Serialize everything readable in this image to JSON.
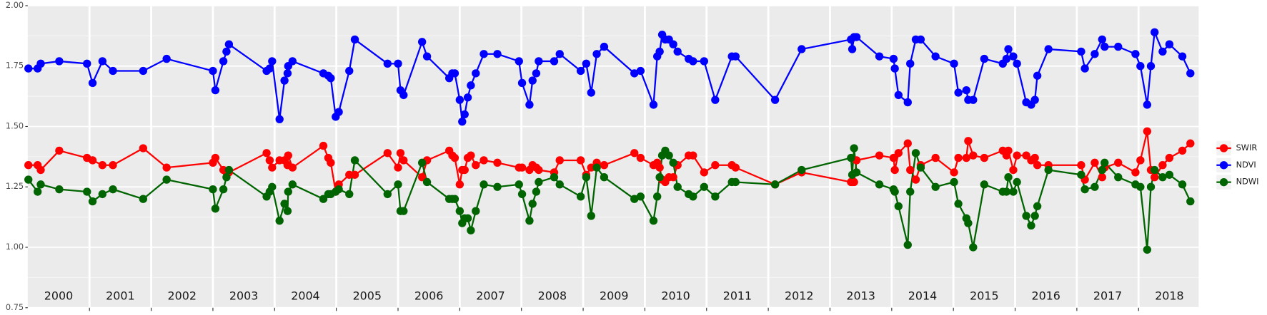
{
  "chart_data": {
    "type": "line",
    "x": [
      2000.01,
      2000.16,
      2000.21,
      2000.51,
      2000.96,
      2001.05,
      2001.21,
      2001.38,
      2001.87,
      2002.25,
      2003.0,
      2003.04,
      2003.17,
      2003.22,
      2003.26,
      2003.87,
      2003.92,
      2003.96,
      2004.08,
      2004.16,
      2004.21,
      2004.22,
      2004.29,
      2004.79,
      2004.87,
      2004.91,
      2004.99,
      2005.04,
      2005.21,
      2005.3,
      2005.83,
      2006.0,
      2006.04,
      2006.09,
      2006.39,
      2006.47,
      2006.83,
      2006.88,
      2006.92,
      2007.0,
      2007.04,
      2007.08,
      2007.13,
      2007.18,
      2007.26,
      2007.39,
      2007.61,
      2007.96,
      2008.01,
      2008.13,
      2008.18,
      2008.24,
      2008.28,
      2008.53,
      2008.62,
      2008.96,
      2009.05,
      2009.13,
      2009.22,
      2009.34,
      2009.83,
      2009.93,
      2010.14,
      2010.2,
      2010.24,
      2010.28,
      2010.33,
      2010.39,
      2010.46,
      2010.53,
      2010.71,
      2010.78,
      2010.96,
      2011.14,
      2011.41,
      2011.47,
      2012.11,
      2012.54,
      2013.34,
      2013.36,
      2013.39,
      2013.43,
      2013.8,
      2014.03,
      2014.05,
      2014.11,
      2014.26,
      2014.3,
      2014.39,
      2014.47,
      2014.71,
      2015.01,
      2015.08,
      2015.21,
      2015.24,
      2015.32,
      2015.5,
      2015.8,
      2015.86,
      2015.89,
      2015.97,
      2016.03,
      2016.18,
      2016.26,
      2016.32,
      2016.36,
      2016.54,
      2017.07,
      2017.13,
      2017.29,
      2017.41,
      2017.45,
      2017.67,
      2017.95,
      2018.03,
      2018.14,
      2018.2,
      2018.26,
      2018.39,
      2018.5,
      2018.71,
      2018.84
    ],
    "series": [
      {
        "name": "SWIR",
        "color": "#ff0000",
        "values": [
          1.34,
          1.34,
          1.32,
          1.4,
          1.37,
          1.36,
          1.34,
          1.34,
          1.41,
          1.33,
          1.35,
          1.37,
          1.32,
          1.31,
          1.31,
          1.39,
          1.36,
          1.33,
          1.36,
          1.36,
          1.34,
          1.38,
          1.33,
          1.42,
          1.37,
          1.35,
          1.23,
          1.26,
          1.3,
          1.3,
          1.39,
          1.33,
          1.39,
          1.36,
          1.29,
          1.36,
          1.4,
          1.38,
          1.37,
          1.26,
          1.32,
          1.32,
          1.37,
          1.38,
          1.34,
          1.36,
          1.35,
          1.33,
          1.33,
          1.32,
          1.34,
          1.33,
          1.32,
          1.31,
          1.36,
          1.36,
          1.3,
          1.33,
          1.35,
          1.34,
          1.39,
          1.37,
          1.34,
          1.35,
          1.33,
          1.28,
          1.27,
          1.29,
          1.29,
          1.34,
          1.38,
          1.38,
          1.31,
          1.34,
          1.34,
          1.33,
          1.26,
          1.31,
          1.27,
          1.27,
          1.27,
          1.36,
          1.38,
          1.37,
          1.32,
          1.39,
          1.43,
          1.32,
          1.28,
          1.34,
          1.37,
          1.31,
          1.37,
          1.37,
          1.44,
          1.38,
          1.37,
          1.4,
          1.38,
          1.4,
          1.32,
          1.38,
          1.38,
          1.36,
          1.37,
          1.34,
          1.34,
          1.34,
          1.28,
          1.35,
          1.29,
          1.33,
          1.35,
          1.31,
          1.36,
          1.48,
          1.32,
          1.29,
          1.34,
          1.37,
          1.4,
          1.43
        ]
      },
      {
        "name": "NDVI",
        "color": "#0000ff",
        "values": [
          1.74,
          1.74,
          1.76,
          1.77,
          1.76,
          1.68,
          1.77,
          1.73,
          1.73,
          1.78,
          1.73,
          1.65,
          1.77,
          1.81,
          1.84,
          1.73,
          1.74,
          1.77,
          1.53,
          1.69,
          1.72,
          1.75,
          1.77,
          1.72,
          1.71,
          1.7,
          1.54,
          1.56,
          1.73,
          1.86,
          1.76,
          1.76,
          1.65,
          1.63,
          1.85,
          1.79,
          1.7,
          1.72,
          1.72,
          1.61,
          1.52,
          1.55,
          1.62,
          1.67,
          1.72,
          1.8,
          1.8,
          1.77,
          1.68,
          1.59,
          1.69,
          1.72,
          1.77,
          1.77,
          1.8,
          1.73,
          1.76,
          1.64,
          1.8,
          1.83,
          1.72,
          1.73,
          1.59,
          1.79,
          1.81,
          1.88,
          1.86,
          1.86,
          1.84,
          1.81,
          1.78,
          1.77,
          1.77,
          1.61,
          1.79,
          1.79,
          1.61,
          1.82,
          1.86,
          1.82,
          1.87,
          1.87,
          1.79,
          1.78,
          1.74,
          1.63,
          1.6,
          1.76,
          1.86,
          1.86,
          1.79,
          1.76,
          1.64,
          1.65,
          1.61,
          1.61,
          1.78,
          1.76,
          1.78,
          1.82,
          1.79,
          1.76,
          1.6,
          1.59,
          1.61,
          1.71,
          1.82,
          1.81,
          1.74,
          1.8,
          1.86,
          1.83,
          1.83,
          1.8,
          1.75,
          1.59,
          1.75,
          1.89,
          1.81,
          1.84,
          1.79,
          1.72
        ]
      },
      {
        "name": "NDWI",
        "color": "#006400",
        "values": [
          1.28,
          1.23,
          1.26,
          1.24,
          1.23,
          1.19,
          1.22,
          1.24,
          1.2,
          1.28,
          1.24,
          1.16,
          1.24,
          1.29,
          1.32,
          1.21,
          1.23,
          1.25,
          1.11,
          1.18,
          1.15,
          1.23,
          1.26,
          1.2,
          1.22,
          1.22,
          1.23,
          1.24,
          1.22,
          1.36,
          1.22,
          1.26,
          1.15,
          1.15,
          1.35,
          1.27,
          1.2,
          1.2,
          1.2,
          1.15,
          1.1,
          1.12,
          1.12,
          1.07,
          1.15,
          1.26,
          1.25,
          1.26,
          1.22,
          1.11,
          1.18,
          1.23,
          1.27,
          1.29,
          1.26,
          1.21,
          1.29,
          1.13,
          1.33,
          1.29,
          1.2,
          1.21,
          1.11,
          1.21,
          1.29,
          1.38,
          1.4,
          1.38,
          1.35,
          1.25,
          1.22,
          1.21,
          1.25,
          1.21,
          1.27,
          1.27,
          1.26,
          1.32,
          1.37,
          1.3,
          1.41,
          1.31,
          1.26,
          1.24,
          1.23,
          1.17,
          1.01,
          1.23,
          1.39,
          1.33,
          1.25,
          1.27,
          1.18,
          1.12,
          1.1,
          1.0,
          1.26,
          1.23,
          1.23,
          1.29,
          1.23,
          1.27,
          1.13,
          1.09,
          1.13,
          1.17,
          1.32,
          1.3,
          1.24,
          1.25,
          1.32,
          1.35,
          1.29,
          1.26,
          1.25,
          0.99,
          1.25,
          1.32,
          1.29,
          1.3,
          1.26,
          1.19
        ]
      }
    ],
    "xlim": [
      2000,
      2019
    ],
    "xticks": [
      2001,
      2002,
      2003,
      2004,
      2005,
      2006,
      2007,
      2008,
      2009,
      2010,
      2011,
      2012,
      2013,
      2014,
      2015,
      2016,
      2017,
      2018
    ],
    "x_labels": [
      {
        "value": 2000.5,
        "label": "2000"
      },
      {
        "value": 2001.5,
        "label": "2001"
      },
      {
        "value": 2002.5,
        "label": "2002"
      },
      {
        "value": 2003.5,
        "label": "2003"
      },
      {
        "value": 2004.5,
        "label": "2004"
      },
      {
        "value": 2005.5,
        "label": "2005"
      },
      {
        "value": 2006.5,
        "label": "2006"
      },
      {
        "value": 2007.5,
        "label": "2007"
      },
      {
        "value": 2008.5,
        "label": "2008"
      },
      {
        "value": 2009.5,
        "label": "2009"
      },
      {
        "value": 2010.5,
        "label": "2010"
      },
      {
        "value": 2011.5,
        "label": "2011"
      },
      {
        "value": 2012.5,
        "label": "2012"
      },
      {
        "value": 2013.5,
        "label": "2013"
      },
      {
        "value": 2014.5,
        "label": "2014"
      },
      {
        "value": 2015.5,
        "label": "2015"
      },
      {
        "value": 2016.5,
        "label": "2016"
      },
      {
        "value": 2017.5,
        "label": "2017"
      },
      {
        "value": 2018.5,
        "label": "2018"
      }
    ],
    "ylim": [
      0.75,
      2.0
    ],
    "yticks": [
      0.75,
      {
        "value": 1.0,
        "label": "1.00"
      },
      1.25,
      {
        "value": 1.5,
        "label": "1.50"
      },
      1.75,
      {
        "value": 2.0,
        "label": "2.00"
      }
    ],
    "grid": true,
    "legend": "right"
  }
}
